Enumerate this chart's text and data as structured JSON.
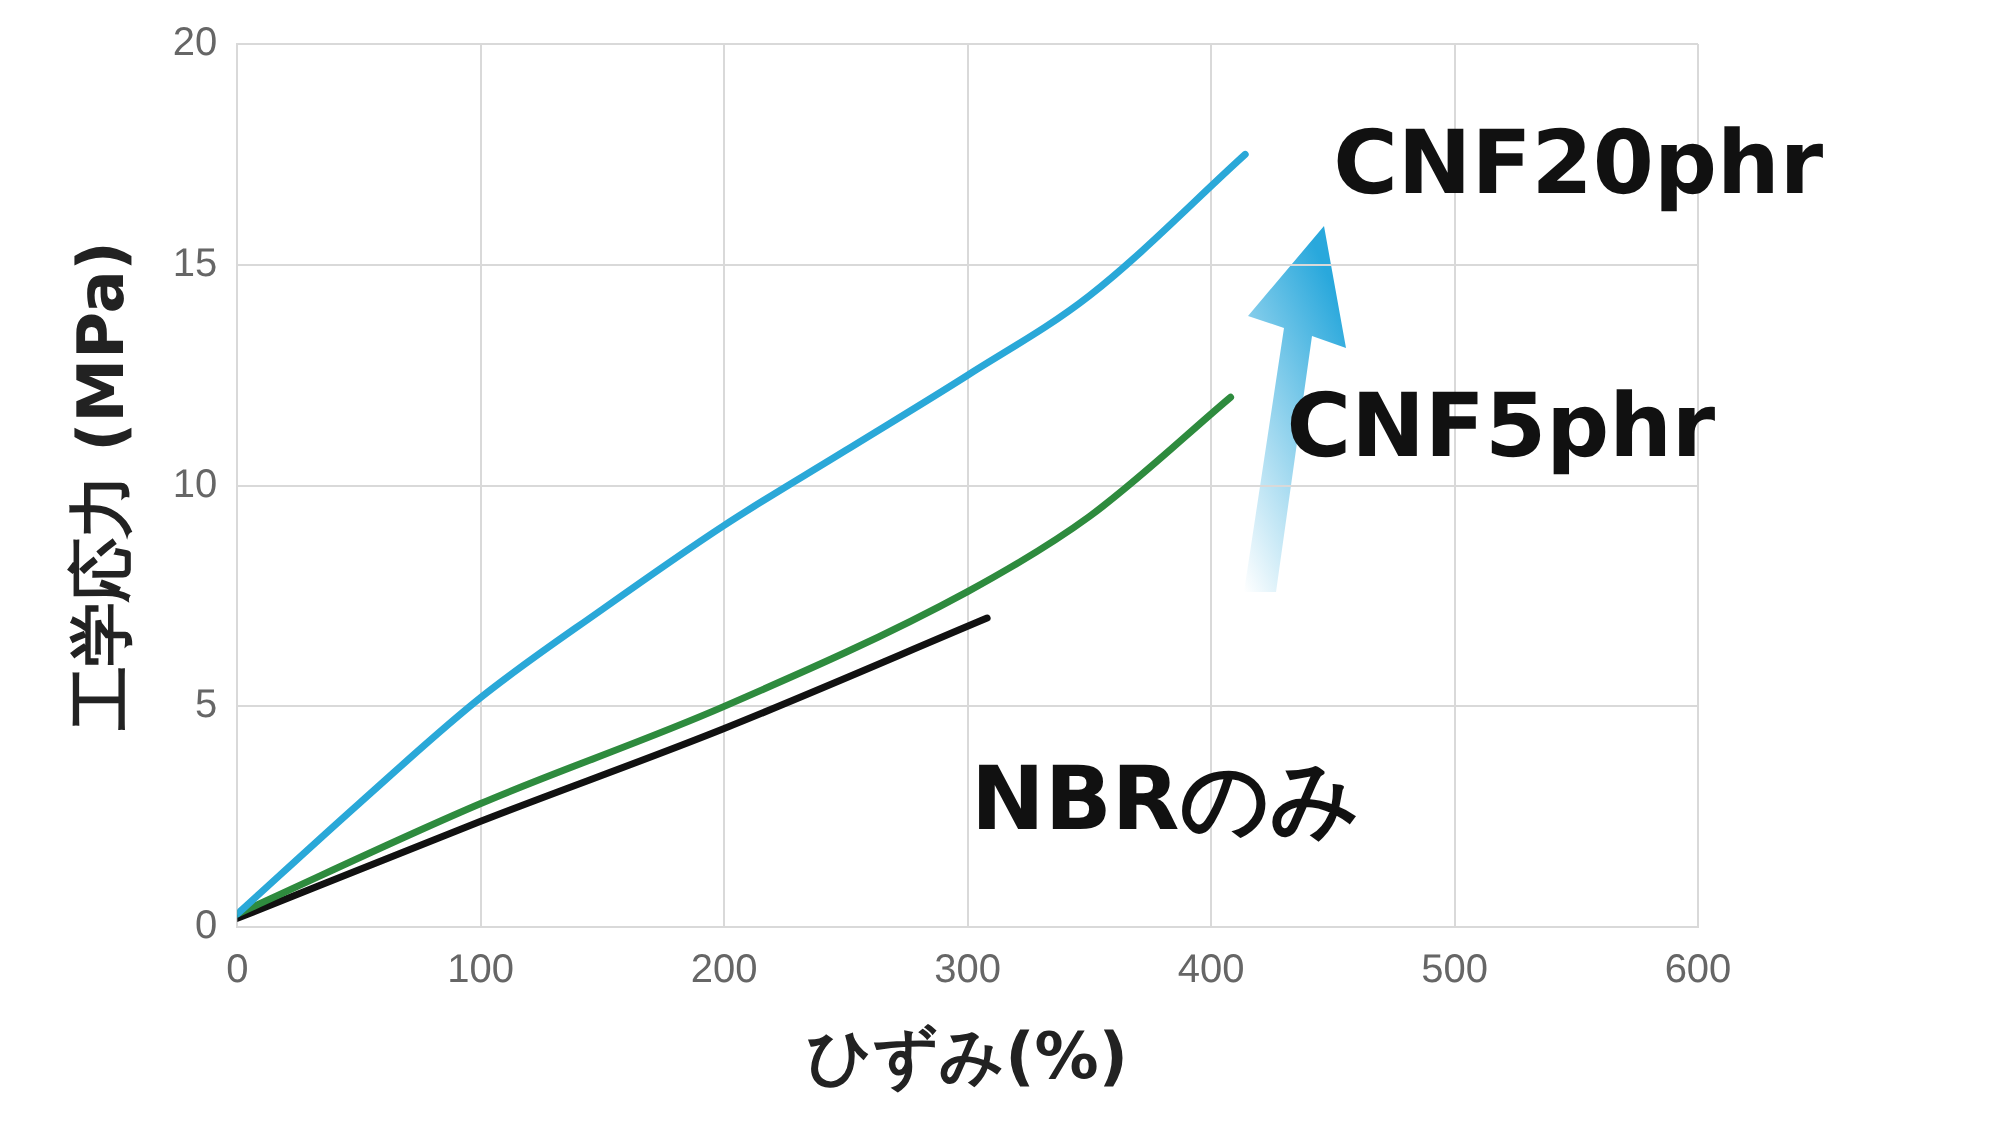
{
  "chart_data": {
    "type": "line",
    "xlabel": "ひずみ(%)",
    "ylabel": "工学応力 (MPa)",
    "xlim": [
      0,
      600
    ],
    "xticks": [
      0,
      100,
      200,
      300,
      400,
      500,
      600
    ],
    "ylim": [
      0,
      20
    ],
    "yticks": [
      0,
      5,
      10,
      15,
      20
    ],
    "grid": true,
    "legend": false,
    "marker": "none",
    "line_style": "solid",
    "series": [
      {
        "name": "CNF20phr",
        "color": "#2aa8d8",
        "x": [
          0,
          50,
          100,
          150,
          200,
          250,
          300,
          350,
          414
        ],
        "values": [
          0.3,
          2.8,
          5.2,
          7.2,
          9.1,
          10.8,
          12.5,
          14.3,
          17.5
        ]
      },
      {
        "name": "CNF5phr",
        "color": "#2e8b3e",
        "x": [
          0,
          100,
          200,
          300,
          350,
          408
        ],
        "values": [
          0.3,
          2.8,
          5.0,
          7.6,
          9.3,
          12.0
        ]
      },
      {
        "name": "NBRのみ",
        "color": "#111111",
        "x": [
          0,
          100,
          200,
          308
        ],
        "values": [
          0.2,
          2.4,
          4.5,
          7.0
        ]
      }
    ]
  }
}
